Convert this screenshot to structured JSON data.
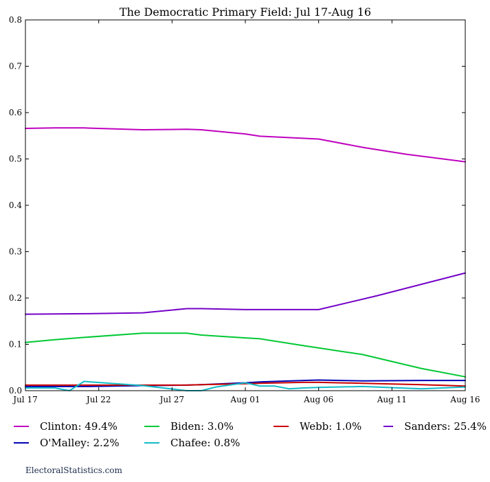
{
  "chart_data": {
    "type": "line",
    "title": "The Democratic Primary Field: Jul 17-Aug 16",
    "xlabel": "",
    "ylabel": "",
    "x_tick_labels": [
      "Jul 17",
      "Jul 22",
      "Jul 27",
      "Aug 01",
      "Aug 06",
      "Aug 11",
      "Aug 16"
    ],
    "x_range_days": [
      0,
      30
    ],
    "ylim": [
      0,
      0.8
    ],
    "y_tick_labels": [
      "0.0",
      "0.1",
      "0.2",
      "0.3",
      "0.4",
      "0.5",
      "0.6",
      "0.7",
      "0.8"
    ],
    "grid": false,
    "legend_placement": "bottom",
    "series": [
      {
        "name": "Clinton: 49.4%",
        "color": "#bf00bf",
        "x": [
          0,
          2,
          4,
          8,
          11,
          12,
          15,
          16,
          20,
          23,
          26,
          30
        ],
        "y": [
          0.566,
          0.567,
          0.567,
          0.563,
          0.564,
          0.563,
          0.554,
          0.549,
          0.543,
          0.525,
          0.51,
          0.494
        ]
      },
      {
        "name": "Sanders: 25.4%",
        "color": "#7400c7",
        "x": [
          0,
          4,
          8,
          11,
          12,
          15,
          16,
          20,
          24,
          30
        ],
        "y": [
          0.165,
          0.166,
          0.168,
          0.177,
          0.177,
          0.175,
          0.175,
          0.175,
          0.205,
          0.254
        ]
      },
      {
        "name": "Biden: 3.0%",
        "color": "#00c833",
        "x": [
          0,
          2,
          4,
          8,
          11,
          12,
          15,
          16,
          19,
          23,
          27,
          30
        ],
        "y": [
          0.104,
          0.11,
          0.115,
          0.124,
          0.124,
          0.12,
          0.114,
          0.112,
          0.097,
          0.078,
          0.048,
          0.03
        ]
      },
      {
        "name": "O'Malley: 2.2%",
        "color": "#0000b4",
        "x": [
          0,
          4,
          8,
          11,
          12,
          15,
          16,
          19,
          20,
          23,
          27,
          30
        ],
        "y": [
          0.009,
          0.009,
          0.011,
          0.012,
          0.013,
          0.017,
          0.019,
          0.022,
          0.023,
          0.021,
          0.022,
          0.022
        ]
      },
      {
        "name": "Webb: 1.0%",
        "color": "#c80000",
        "x": [
          0,
          4,
          8,
          11,
          12,
          15,
          16,
          19,
          20,
          23,
          27,
          30
        ],
        "y": [
          0.012,
          0.012,
          0.012,
          0.012,
          0.013,
          0.015,
          0.016,
          0.018,
          0.018,
          0.016,
          0.013,
          0.01
        ]
      },
      {
        "name": "Chafee: 0.8%",
        "color": "#10bcc8",
        "x": [
          0,
          2,
          3,
          4,
          8,
          11,
          12,
          13,
          15,
          16,
          17,
          18,
          19,
          20,
          23,
          27,
          30
        ],
        "y": [
          0.006,
          0.006,
          0.0,
          0.02,
          0.011,
          0.0,
          0.0,
          0.008,
          0.017,
          0.01,
          0.01,
          0.004,
          0.006,
          0.007,
          0.009,
          0.004,
          0.008
        ]
      }
    ]
  },
  "footer": {
    "credit": "ElectoralStatistics.com"
  }
}
